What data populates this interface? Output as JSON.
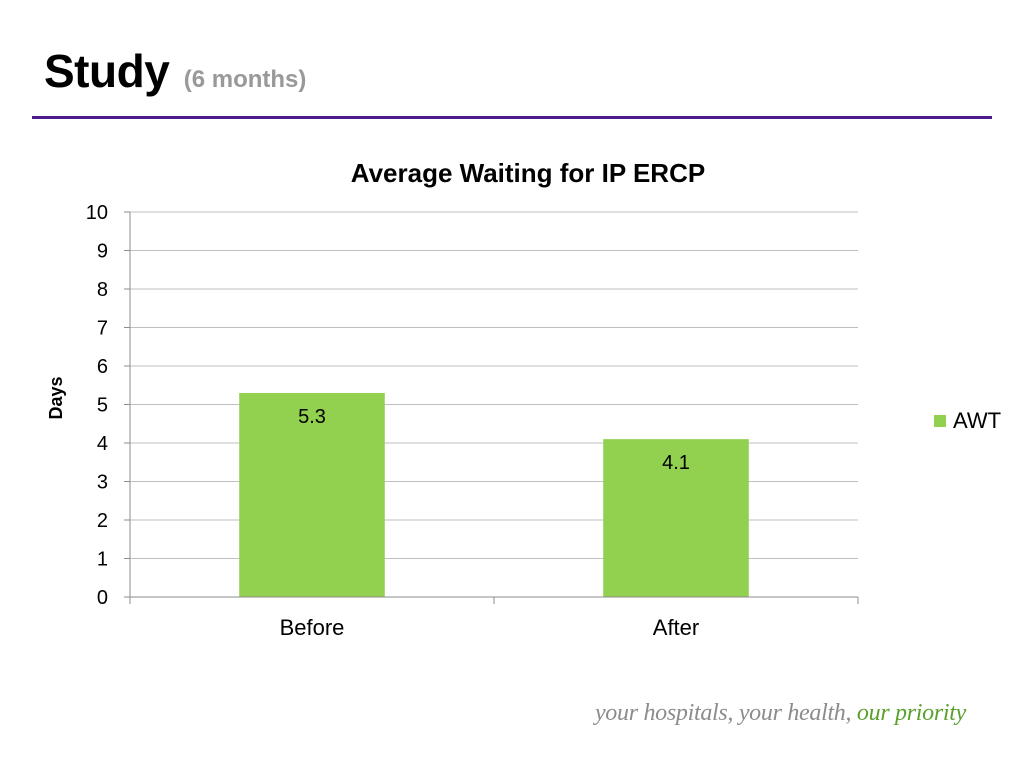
{
  "slide": {
    "title": "Study",
    "subtitle": "(6 months)",
    "footer_text": "your hospitals, your health,",
    "footer_highlight": "our priority"
  },
  "colors": {
    "title_rule": "#4b1a8c",
    "subtitle": "#999999",
    "bar": "#92d050",
    "gridline": "#bfbfbf",
    "footer_text": "#8c8c8c",
    "footer_highlight": "#5aa02c"
  },
  "chart_data": {
    "type": "bar",
    "title": "Average Waiting for IP ERCP",
    "ylabel": "Days",
    "xlabel": "",
    "categories": [
      "Before",
      "After"
    ],
    "series": [
      {
        "name": "AWT",
        "values": [
          5.3,
          4.1
        ],
        "data_labels": [
          "5.3",
          "4.1"
        ]
      }
    ],
    "ylim": [
      0,
      10
    ],
    "yticks": [
      "0",
      "1",
      "2",
      "3",
      "4",
      "5",
      "6",
      "7",
      "8",
      "9",
      "10"
    ],
    "grid": true,
    "legend": "right"
  }
}
